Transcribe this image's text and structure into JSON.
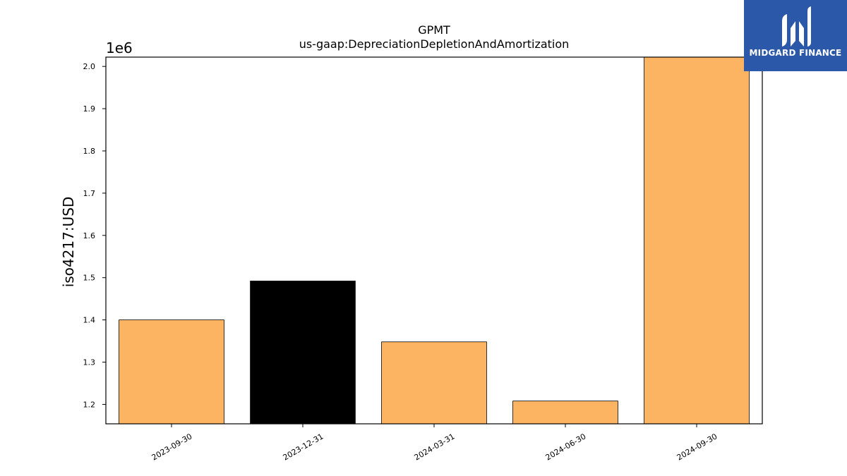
{
  "chart_data": {
    "type": "bar",
    "title": "GPMT",
    "subtitle": "us-gaap:DepreciationDepletionAndAmortization",
    "ylabel": "iso4217:USD",
    "y_offset_label": "1e6",
    "categories": [
      "2023-09-30",
      "2023-12-31",
      "2024-03-31",
      "2024-06-30",
      "2024-09-30"
    ],
    "values": [
      1400000,
      1492000,
      1348000,
      1208000,
      2022000
    ],
    "bar_colors": [
      "#fdb462",
      "#000000",
      "#fdb462",
      "#fdb462",
      "#fdb462"
    ],
    "ylim": [
      1154000,
      2022000
    ],
    "yticks": [
      1.2,
      1.3,
      1.4,
      1.5,
      1.6,
      1.7,
      1.8,
      1.9,
      2.0
    ],
    "ytick_labels": [
      "1.2",
      "1.3",
      "1.4",
      "1.5",
      "1.6",
      "1.7",
      "1.8",
      "1.9",
      "2.0"
    ],
    "grid": false,
    "legend": "none"
  },
  "logo": {
    "text": "MIDGARD FINANCE",
    "icon": "midgard-logo-icon",
    "background": "#2b58a8"
  }
}
